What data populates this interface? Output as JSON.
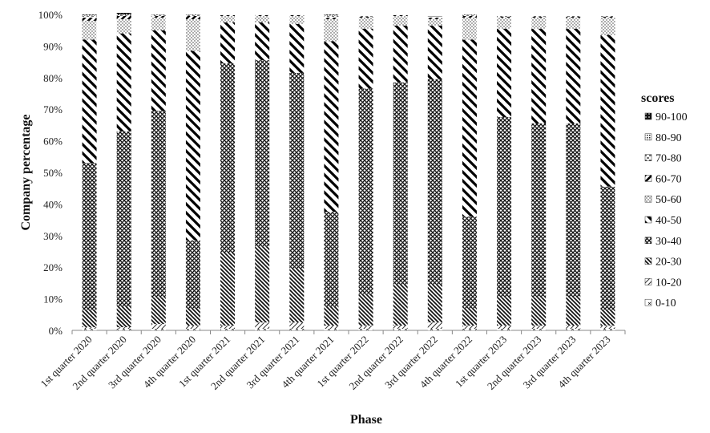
{
  "chart_data": {
    "type": "bar",
    "stacked": true,
    "xlabel": "Phase",
    "ylabel": "Company percentage",
    "legend_title": "scores",
    "legend_position": "right",
    "ylim": [
      0,
      100
    ],
    "yticks": [
      "0%",
      "10%",
      "20%",
      "30%",
      "40%",
      "50%",
      "60%",
      "70%",
      "80%",
      "90%",
      "100%"
    ],
    "categories": [
      "1st quarter 2020",
      "2nd quarter 2020",
      "3rd quarter 2020",
      "4th quarter 2020",
      "1st quarter 2021",
      "2nd quarter 2021",
      "3rd quarter 2021",
      "4th quarter 2021",
      "1st quarter 2022",
      "2nd quarter 2022",
      "3rd quarter 2022",
      "4th quarter 2022",
      "1st quarter 2023",
      "2nd quarter 2023",
      "3rd quarter 2023",
      "4th quarter 2023"
    ],
    "series": [
      {
        "name": "0-10",
        "pattern": "cross-light",
        "values": [
          0.5,
          0.5,
          0.5,
          0.5,
          0.5,
          0.5,
          0.5,
          0.5,
          0.5,
          0.5,
          0.5,
          0.5,
          0.5,
          0.5,
          0.5,
          0.5
        ]
      },
      {
        "name": "10-20",
        "pattern": "diag-light",
        "values": [
          0.5,
          0.5,
          1.5,
          1.0,
          1.0,
          2.0,
          2.0,
          1.0,
          1.0,
          1.0,
          2.0,
          1.0,
          1.0,
          1.0,
          1.0,
          1.0
        ]
      },
      {
        "name": "20-30",
        "pattern": "diag-back",
        "values": [
          5.5,
          6.5,
          8.5,
          5.5,
          23.0,
          24.0,
          17.0,
          6.0,
          10.0,
          13.0,
          12.0,
          5.5,
          9.0,
          9.0,
          9.0,
          5.0
        ]
      },
      {
        "name": "30-40",
        "pattern": "crosshatch",
        "values": [
          46.5,
          55.5,
          59.0,
          21.5,
          60.0,
          59.0,
          62.0,
          30.0,
          65.0,
          64.0,
          65.0,
          29.0,
          57.0,
          55.0,
          55.0,
          39.0
        ]
      },
      {
        "name": "40-50",
        "pattern": "wide-down",
        "values": [
          39.0,
          31.0,
          25.5,
          60.0,
          13.0,
          12.0,
          15.5,
          54.0,
          19.0,
          18.0,
          17.0,
          56.0,
          28.0,
          30.0,
          30.0,
          48.0
        ]
      },
      {
        "name": "50-60",
        "pattern": "dots",
        "values": [
          6.0,
          4.5,
          4.0,
          10.0,
          2.0,
          2.0,
          2.5,
          7.0,
          3.5,
          3.0,
          2.0,
          7.0,
          3.5,
          3.5,
          3.5,
          5.5
        ]
      },
      {
        "name": "60-70",
        "pattern": "wide-up",
        "values": [
          1.0,
          1.0,
          0.5,
          1.0,
          0.3,
          0.3,
          0.3,
          0.5,
          0.3,
          0.3,
          0.5,
          0.5,
          0.3,
          0.3,
          0.3,
          0.3
        ]
      },
      {
        "name": "70-80",
        "pattern": "dash",
        "values": [
          0.5,
          0.3,
          0.3,
          0.3,
          0.2,
          0.2,
          0.2,
          0.5,
          0.2,
          0.2,
          0.3,
          0.3,
          0.2,
          0.2,
          0.2,
          0.2
        ]
      },
      {
        "name": "80-90",
        "pattern": "dots-dense",
        "values": [
          0.3,
          0.2,
          0.1,
          0.1,
          0.0,
          0.0,
          0.0,
          0.3,
          0.0,
          0.0,
          0.1,
          0.1,
          0.0,
          0.0,
          0.0,
          0.0
        ]
      },
      {
        "name": "90-100",
        "pattern": "solid-box",
        "values": [
          0.2,
          0.5,
          0.1,
          0.1,
          0.0,
          0.0,
          0.0,
          0.2,
          0.0,
          0.0,
          0.1,
          0.1,
          0.0,
          0.0,
          0.0,
          0.0
        ]
      }
    ]
  }
}
